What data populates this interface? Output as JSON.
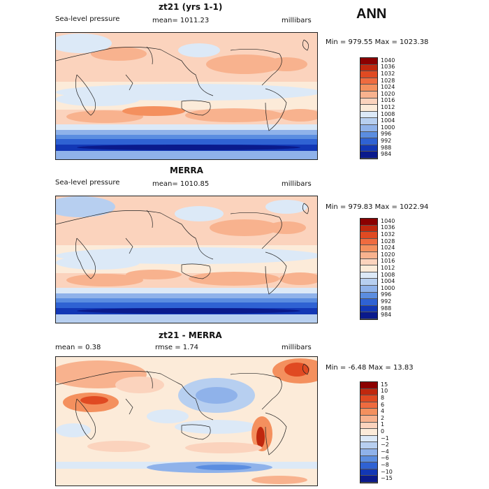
{
  "season": "ANN",
  "panels": [
    {
      "title": "zt21 (yrs 1-1)",
      "variable": "Sea-level pressure",
      "mean": "mean= 1011.23",
      "units": "millibars",
      "minmax": "Min = 979.55 Max = 1023.38",
      "levels": [
        "1040",
        "1036",
        "1032",
        "1028",
        "1024",
        "1020",
        "1016",
        "1012",
        "1008",
        "1004",
        "1000",
        "996",
        "992",
        "988",
        "984"
      ]
    },
    {
      "title": "MERRA",
      "variable": "Sea-level pressure",
      "mean": "mean= 1010.85",
      "units": "millibars",
      "minmax": "Min = 979.83 Max = 1022.94",
      "levels": [
        "1040",
        "1036",
        "1032",
        "1028",
        "1024",
        "1020",
        "1016",
        "1012",
        "1008",
        "1004",
        "1000",
        "996",
        "992",
        "988",
        "984"
      ]
    },
    {
      "title": "zt21 - MERRA",
      "mean": "mean =    0.38",
      "rmse": "rmse =    1.74",
      "units": "millibars",
      "minmax": "Min =  -6.48 Max =  13.83",
      "levels": [
        "15",
        "10",
        "8",
        "6",
        "4",
        "2",
        "1",
        "0",
        "−1",
        "−2",
        "−4",
        "−6",
        "−8",
        "−10",
        "−15"
      ]
    }
  ],
  "colors": {
    "abs_scale": [
      "#8b0000",
      "#c0280e",
      "#e04a22",
      "#ef6b3f",
      "#f4905e",
      "#f8b28e",
      "#fbd3bd",
      "#fcebd9",
      "#dce9f7",
      "#b7cff0",
      "#8fb2ea",
      "#5b8de0",
      "#2f62d3",
      "#1237b5",
      "#0a1a8c"
    ],
    "diff_scale": [
      "#8b0000",
      "#c0280e",
      "#e04a22",
      "#ef6b3f",
      "#f4905e",
      "#f8b28e",
      "#fbd3bd",
      "#fcebd9",
      "#dce9f7",
      "#b7cff0",
      "#8fb2ea",
      "#5b8de0",
      "#2f62d3",
      "#1237b5",
      "#0a1a8c"
    ]
  }
}
